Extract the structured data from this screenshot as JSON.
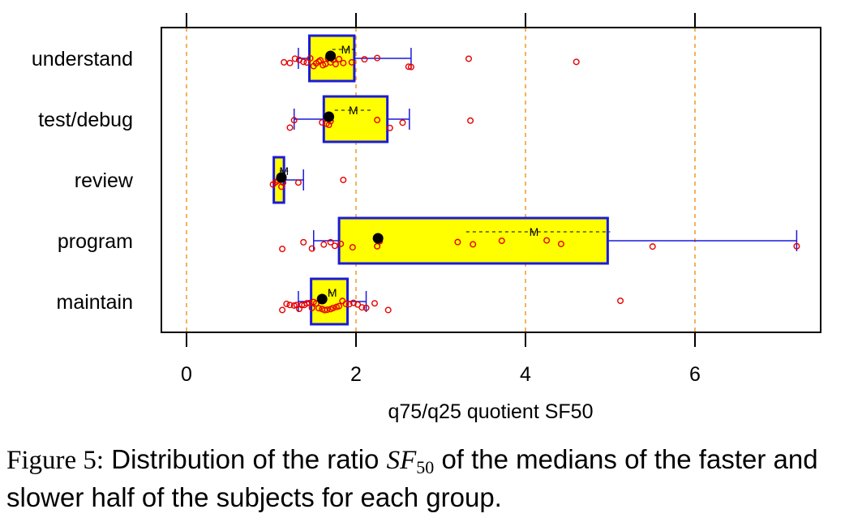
{
  "chart_data": {
    "type": "boxplot",
    "xlabel": "q75/q25 quotient SF50",
    "xlim": [
      -0.3,
      7.4
    ],
    "xticks": [
      0,
      2,
      4,
      6
    ],
    "vlines": [
      0,
      2,
      4,
      6
    ],
    "mean_label": "M",
    "colors": {
      "box_fill": "#ffff00",
      "box_border": "#1a1adb",
      "whisker": "#1a1adb",
      "points": "#e60000",
      "median_dot": "#000000",
      "grid": "#f0a030",
      "mean_line": "#000000"
    },
    "groups": [
      {
        "name": "understand",
        "q1": 1.45,
        "median": 1.7,
        "q3": 1.98,
        "whisker_low": 1.32,
        "whisker_high": 2.65,
        "mean": 1.88,
        "mean_sd_low": 1.72,
        "mean_sd_high": 2.0,
        "points": [
          1.15,
          1.22,
          1.28,
          1.33,
          1.38,
          1.42,
          1.46,
          1.5,
          1.53,
          1.56,
          1.58,
          1.61,
          1.64,
          1.67,
          1.7,
          1.73,
          1.76,
          1.8,
          1.85,
          1.95,
          2.1,
          2.25,
          2.62,
          2.65,
          3.33,
          4.6
        ]
      },
      {
        "name": "test/debug",
        "q1": 1.62,
        "median": 1.68,
        "q3": 2.37,
        "whisker_low": 1.27,
        "whisker_high": 2.63,
        "mean": 1.97,
        "mean_sd_low": 1.75,
        "mean_sd_high": 2.2,
        "points": [
          1.22,
          1.27,
          1.6,
          1.65,
          1.68,
          1.7,
          2.25,
          2.4,
          2.55,
          3.35
        ]
      },
      {
        "name": "review",
        "q1": 1.03,
        "median": 1.12,
        "q3": 1.15,
        "whisker_low": 1.03,
        "whisker_high": 1.38,
        "mean": 1.15,
        "mean_sd_low": 1.1,
        "mean_sd_high": 1.2,
        "points": [
          1.02,
          1.05,
          1.08,
          1.12,
          1.14,
          1.32,
          1.85
        ]
      },
      {
        "name": "program",
        "q1": 1.8,
        "median": 2.26,
        "q3": 4.97,
        "whisker_low": 1.5,
        "whisker_high": 7.2,
        "mean": 4.1,
        "mean_sd_low": 3.3,
        "mean_sd_high": 5.0,
        "points": [
          1.13,
          1.38,
          1.48,
          1.62,
          1.7,
          1.75,
          1.82,
          1.96,
          2.25,
          2.28,
          3.2,
          3.38,
          3.72,
          4.25,
          4.42,
          5.5,
          7.2
        ]
      },
      {
        "name": "maintain",
        "q1": 1.47,
        "median": 1.6,
        "q3": 1.9,
        "whisker_low": 1.32,
        "whisker_high": 2.12,
        "mean": 1.72,
        "mean_sd_low": 1.68,
        "mean_sd_high": 1.76,
        "points": [
          1.13,
          1.18,
          1.22,
          1.27,
          1.3,
          1.33,
          1.36,
          1.39,
          1.42,
          1.45,
          1.48,
          1.5,
          1.53,
          1.56,
          1.6,
          1.63,
          1.66,
          1.7,
          1.73,
          1.77,
          1.8,
          1.84,
          1.88,
          1.92,
          1.97,
          2.02,
          2.07,
          2.12,
          2.22,
          2.38,
          5.12
        ]
      }
    ]
  },
  "caption": {
    "prefix": "Figure 5:",
    "text_before": "Distribution of the ratio",
    "math_main": "SF",
    "math_sub": "50",
    "text_after": "of the medians of the faster and slower half of the subjects for each group."
  }
}
